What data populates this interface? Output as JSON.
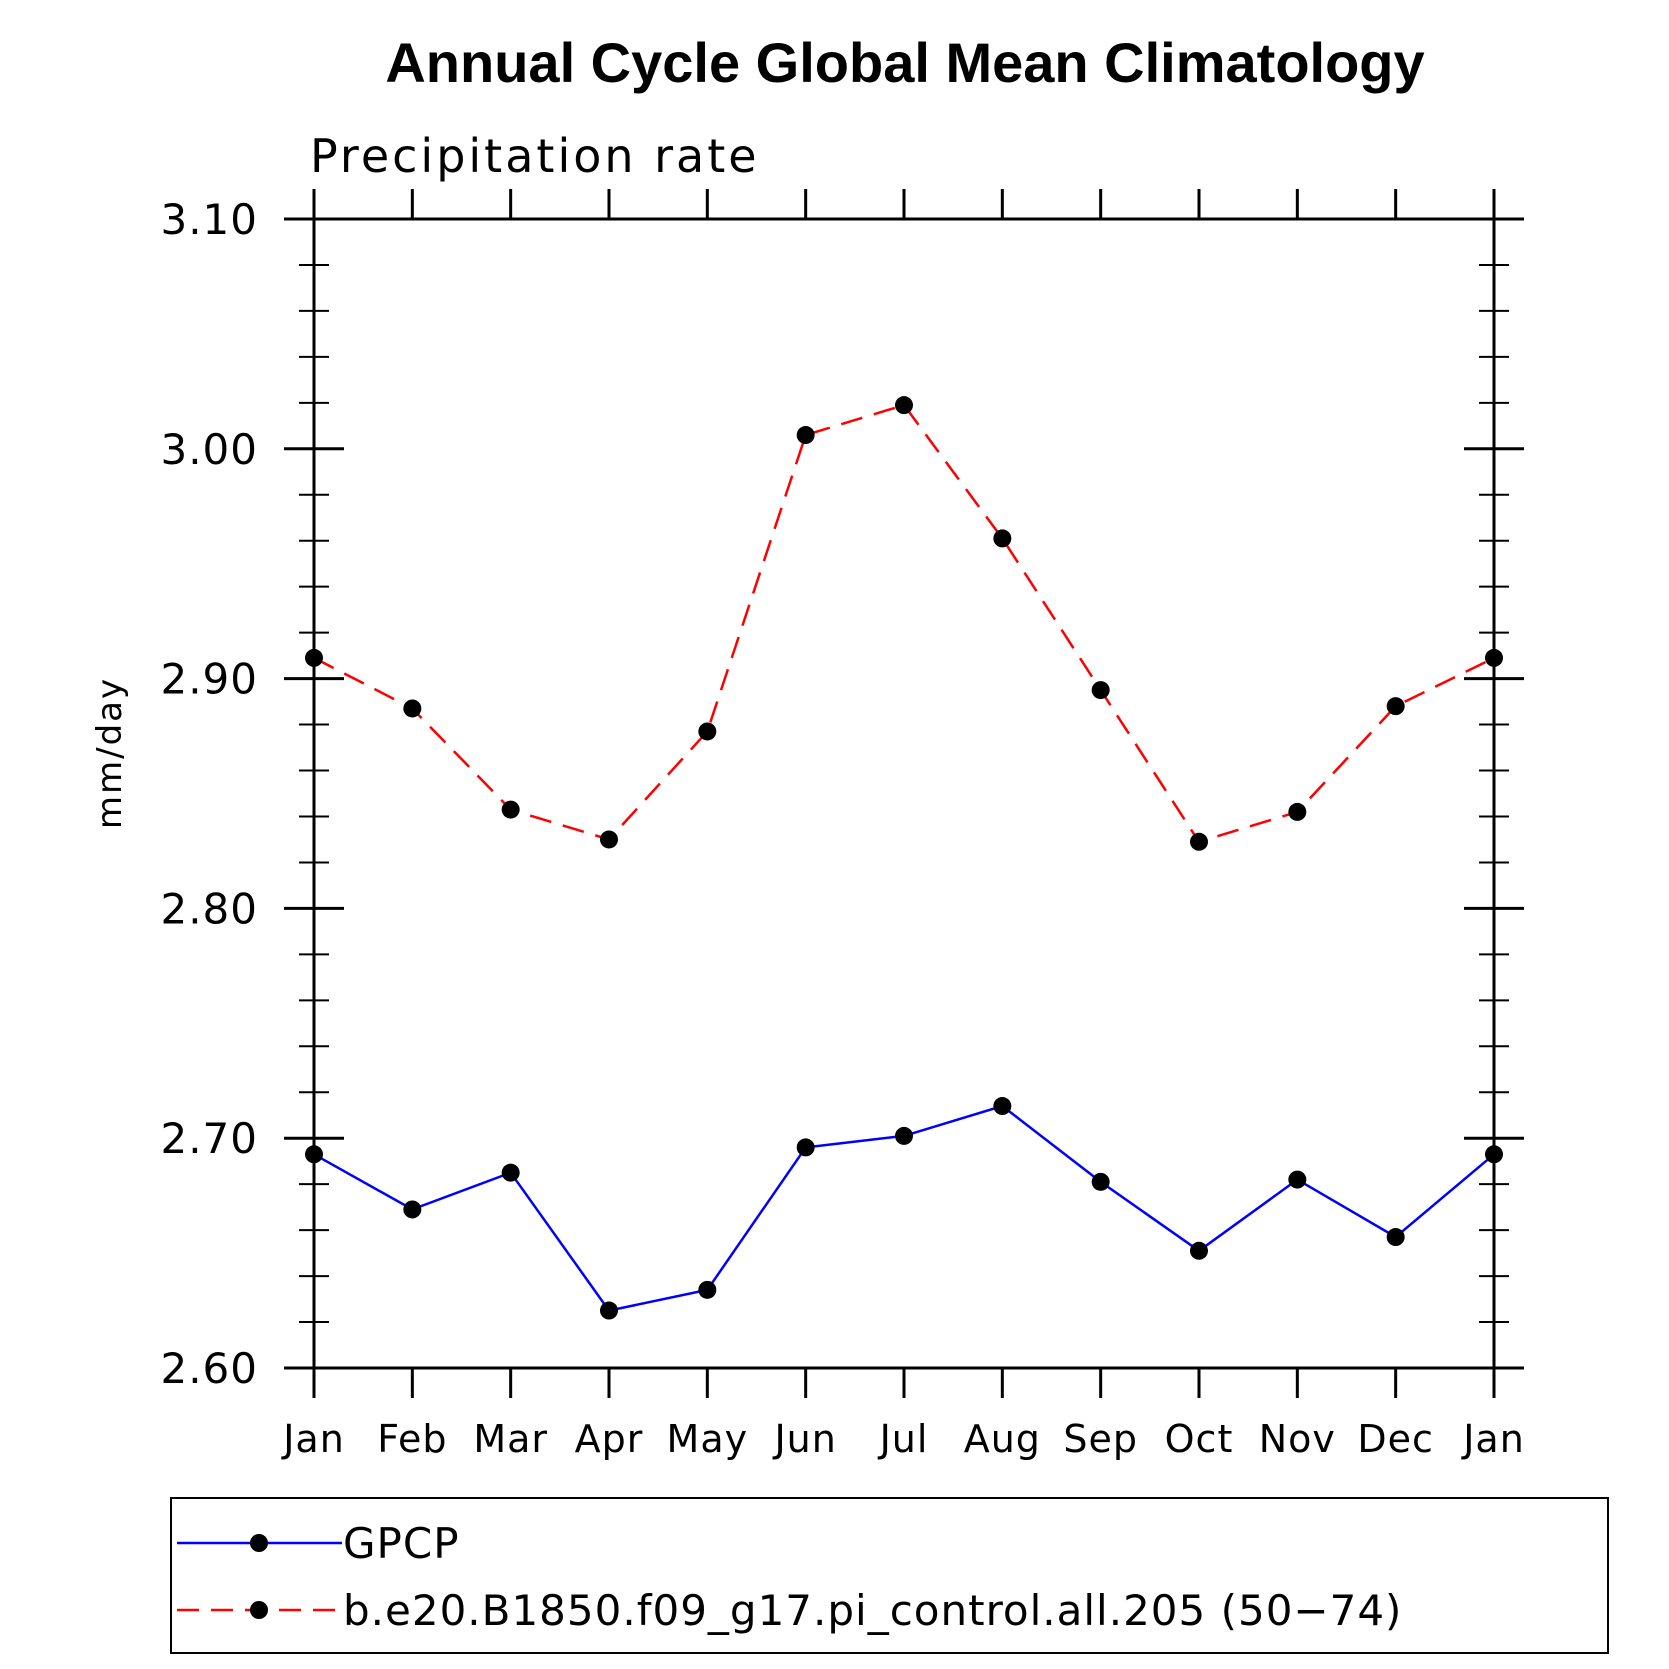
{
  "chart_data": {
    "type": "line",
    "title": "Annual Cycle Global Mean Climatology",
    "subtitle": "Precipitation rate",
    "xlabel": "",
    "ylabel": "mm/day",
    "categories": [
      "Jan",
      "Feb",
      "Mar",
      "Apr",
      "May",
      "Jun",
      "Jul",
      "Aug",
      "Sep",
      "Oct",
      "Nov",
      "Dec",
      "Jan"
    ],
    "ylim": [
      2.6,
      3.1
    ],
    "yticks": [
      "2.60",
      "2.70",
      "2.80",
      "2.90",
      "3.00",
      "3.10"
    ],
    "grid": false,
    "legend_position": "bottom",
    "series": [
      {
        "name": "GPCP",
        "color": "#0000ff",
        "dash": "solid",
        "marker": "filled-circle",
        "values": [
          2.693,
          2.669,
          2.685,
          2.625,
          2.634,
          2.696,
          2.701,
          2.714,
          2.681,
          2.651,
          2.682,
          2.657,
          2.693
        ]
      },
      {
        "name": "b.e20.B1850.f09_g17.pi_control.all.205 (50−74)",
        "color": "#ff0000",
        "dash": "dashed",
        "marker": "filled-circle",
        "values": [
          2.909,
          2.887,
          2.843,
          2.83,
          2.877,
          3.006,
          3.019,
          2.961,
          2.895,
          2.829,
          2.842,
          2.888,
          2.909
        ]
      }
    ]
  }
}
